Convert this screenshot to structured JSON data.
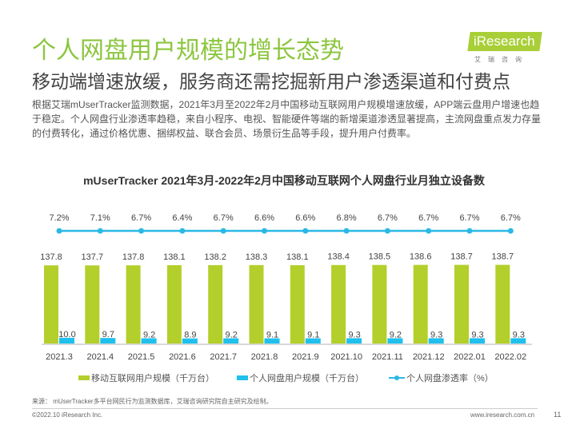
{
  "header": {
    "title": "个人网盘用户规模的增长态势",
    "subtitle": "移动端增速放缓，服务商还需挖掘新用户渗透渠道和付费点",
    "body": "根据艾瑞mUserTracker监测数据，2021年3月至2022年2月中国移动互联网用户规模增速放缓，APP端云盘用户增速也趋于稳定。个人网盘行业渗透率趋稳，来自小程序、电视、智能硬件等端的新增渠道渗透显著提高，主流网盘重点发力存量的付费转化，通过价格优惠、捆绑权益、联合会员、场景衍生品等手段，提升用户付费率。",
    "logo_text": "iResearch",
    "logo_sub": "艾瑞咨询"
  },
  "chart_data": {
    "type": "bar",
    "title": "mUserTracker 2021年3月-2022年2月中国移动互联网个人网盘行业月独立设备数",
    "categories": [
      "2021.3",
      "2021.4",
      "2021.5",
      "2021.6",
      "2021.7",
      "2021.8",
      "2021.9",
      "2021.10",
      "2021.11",
      "2021.12",
      "2022.01",
      "2022.02"
    ],
    "series": [
      {
        "name": "移动互联网用户规模（千万台）",
        "type": "bar",
        "color": "#b3cf2b",
        "values": [
          137.8,
          137.7,
          137.8,
          138.1,
          138.2,
          138.3,
          138.1,
          138.4,
          138.5,
          138.6,
          138.7,
          138.7
        ],
        "labels": [
          "137.8",
          "137.7",
          "137.8",
          "138.1",
          "138.2",
          "138.3",
          "138.1",
          "138.4",
          "138.5",
          "138.6",
          "138.7",
          "138.7"
        ]
      },
      {
        "name": "个人网盘用户规模（千万台）",
        "type": "bar",
        "color": "#1fc0ee",
        "values": [
          10.0,
          9.7,
          9.2,
          8.9,
          9.2,
          9.1,
          9.1,
          9.3,
          9.2,
          9.3,
          9.3,
          9.3
        ],
        "labels": [
          "10.0",
          "9.7",
          "9.2",
          "8.9",
          "9.2",
          "9.1",
          "9.1",
          "9.3",
          "9.2",
          "9.3",
          "9.3",
          "9.3"
        ]
      },
      {
        "name": "个人网盘渗透率（%）",
        "type": "line",
        "color": "#2ab8e6",
        "values": [
          7.2,
          7.1,
          6.7,
          6.4,
          6.7,
          6.6,
          6.6,
          6.8,
          6.7,
          6.7,
          6.7,
          6.7
        ],
        "labels": [
          "7.2%",
          "7.1%",
          "6.7%",
          "6.4%",
          "6.7%",
          "6.6%",
          "6.6%",
          "6.8%",
          "6.7%",
          "6.7%",
          "6.7%",
          "6.7%"
        ]
      }
    ],
    "legend": "bottom"
  },
  "footer": {
    "source": "来源： mUserTracker多平台网民行为监测数据库，艾瑞咨询研究院自主研究及绘制。",
    "copyright": "©2022.10 iResearch Inc.",
    "url": "www.iresearch.com.cn",
    "page": "11"
  }
}
